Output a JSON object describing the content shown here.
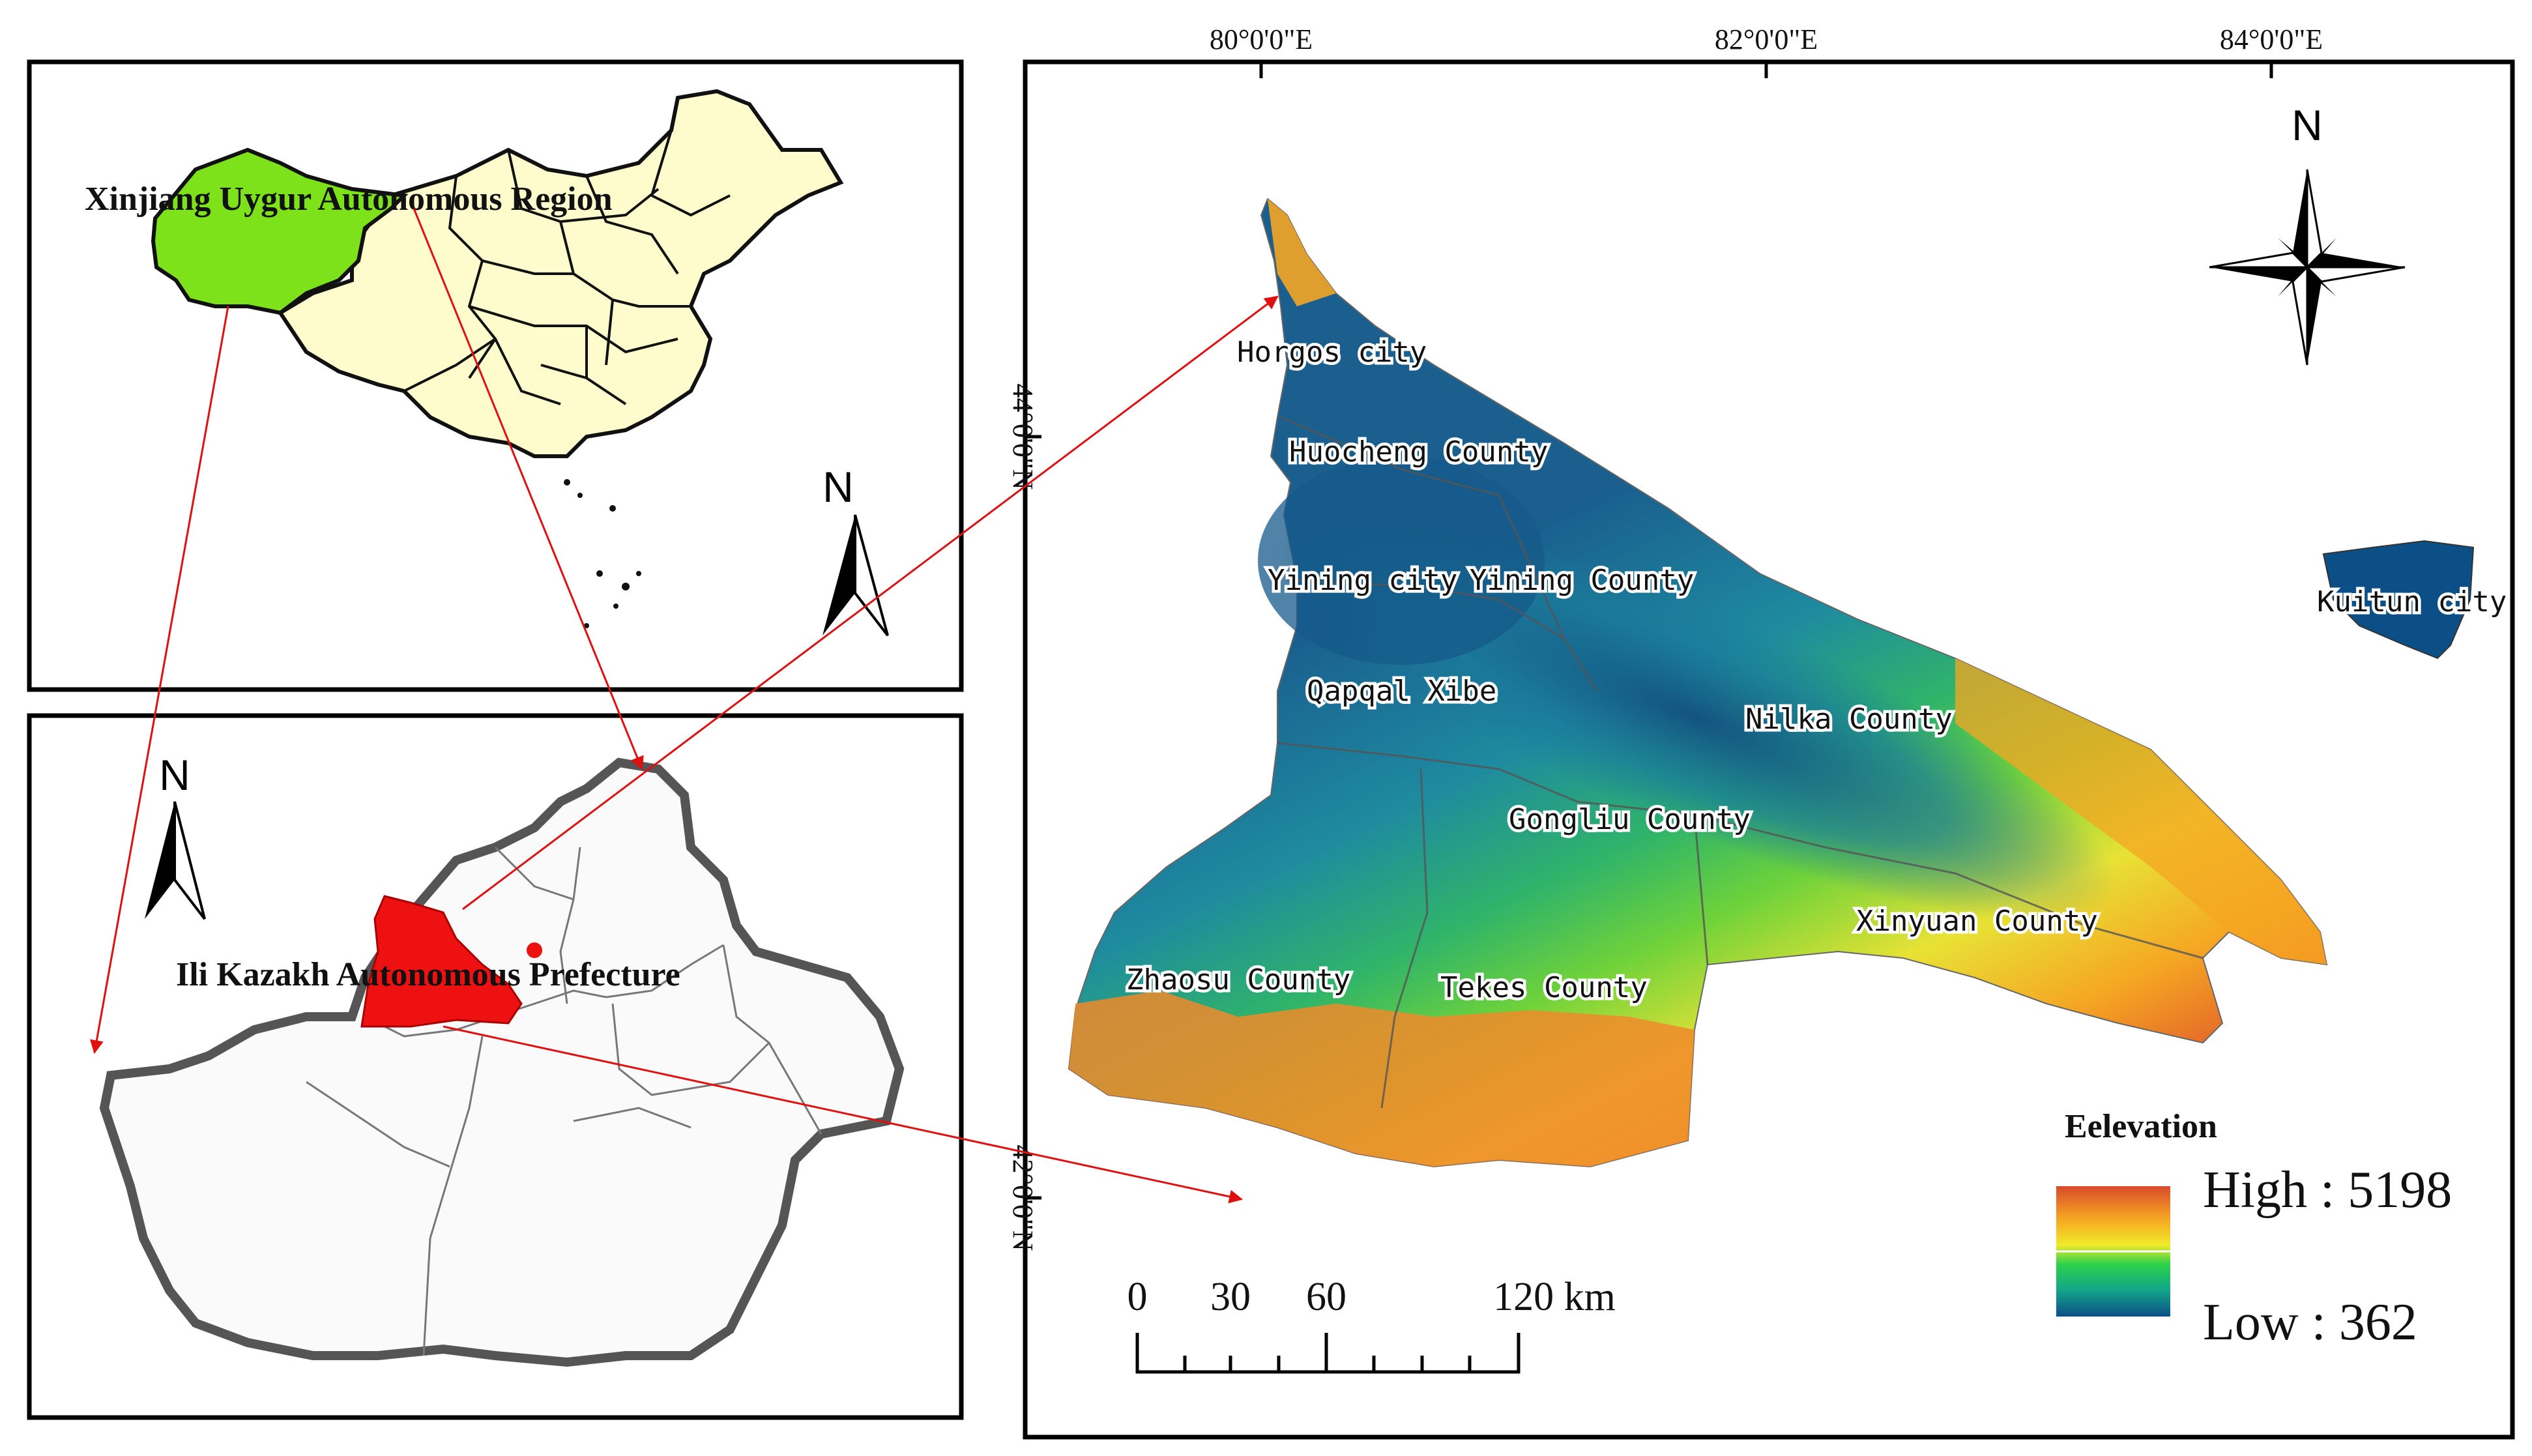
{
  "inset_china": {
    "region_label": "Xinjiang Uygur Autonomous Region",
    "north": "N",
    "colors": {
      "xinjiang": "#7ee21a",
      "provinces": "#fefccc"
    }
  },
  "inset_xinjiang": {
    "prefecture_label": "Ili Kazakh Autonomous Prefecture",
    "north": "N",
    "colors": {
      "prefecture": "#ee1111"
    }
  },
  "main_map": {
    "lon_labels": [
      "80°0'0\"E",
      "82°0'0\"E",
      "84°0'0\"E"
    ],
    "lat_labels": [
      "44°0'0\"N",
      "42°0'0\"N"
    ],
    "north": "N",
    "places": {
      "horgos": "Horgos city",
      "huocheng": "Huocheng County",
      "yining_city": "Yining city",
      "yining_county": "Yining County",
      "qapqal": "Qapqal Xibe",
      "nilka": "Nilka County",
      "gongliu": "Gongliu County",
      "xinyuan": "Xinyuan County",
      "zhaosu": "Zhaosu  County",
      "tekes": "Tekes County",
      "kuitun": "Kuitun city"
    },
    "scale": {
      "ticks": [
        "0",
        "30",
        "60",
        "120 km"
      ]
    },
    "legend": {
      "title": "Eelevation",
      "high": "High : 5198",
      "low": "Low : 362",
      "high_value": 5198,
      "low_value": 362,
      "colors": [
        "#d94a2a",
        "#f5a623",
        "#f2ea2a",
        "#2bd24a",
        "#12a58a",
        "#0c4f86"
      ]
    }
  },
  "colors": {
    "arrow": "#e01010",
    "frame": "#000000"
  }
}
